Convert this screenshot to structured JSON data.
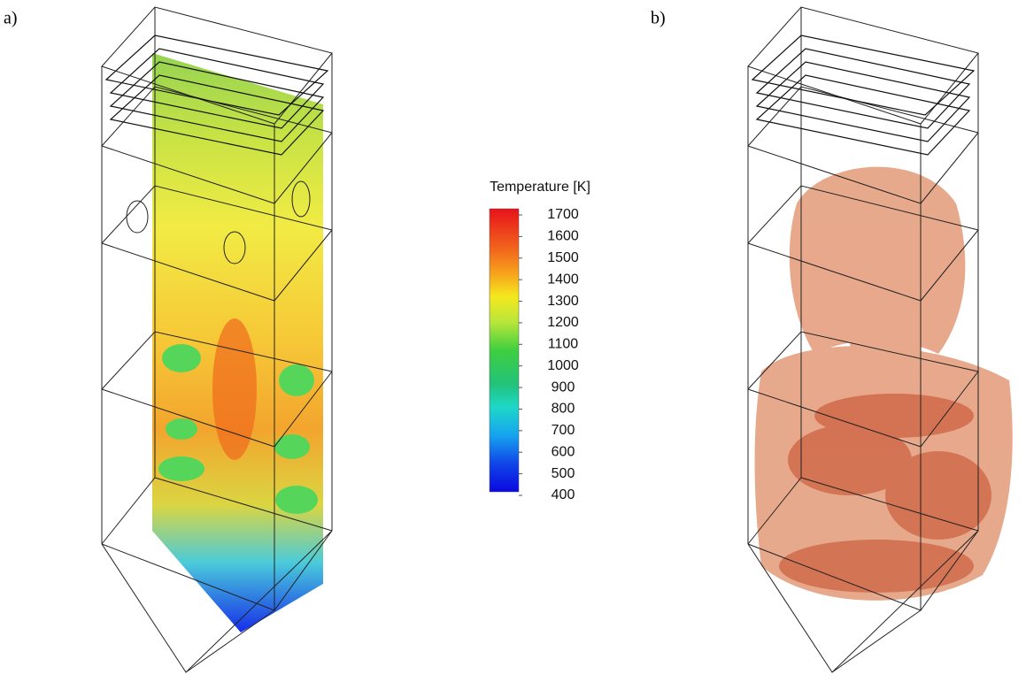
{
  "panels": [
    {
      "label": "a)"
    },
    {
      "label": "b)"
    }
  ],
  "colorbar": {
    "title": "Temperature [K]",
    "range": [
      400,
      1700
    ],
    "ticks": [
      1700,
      1600,
      1500,
      1400,
      1300,
      1200,
      1100,
      1000,
      900,
      800,
      700,
      600,
      500,
      400
    ]
  }
}
